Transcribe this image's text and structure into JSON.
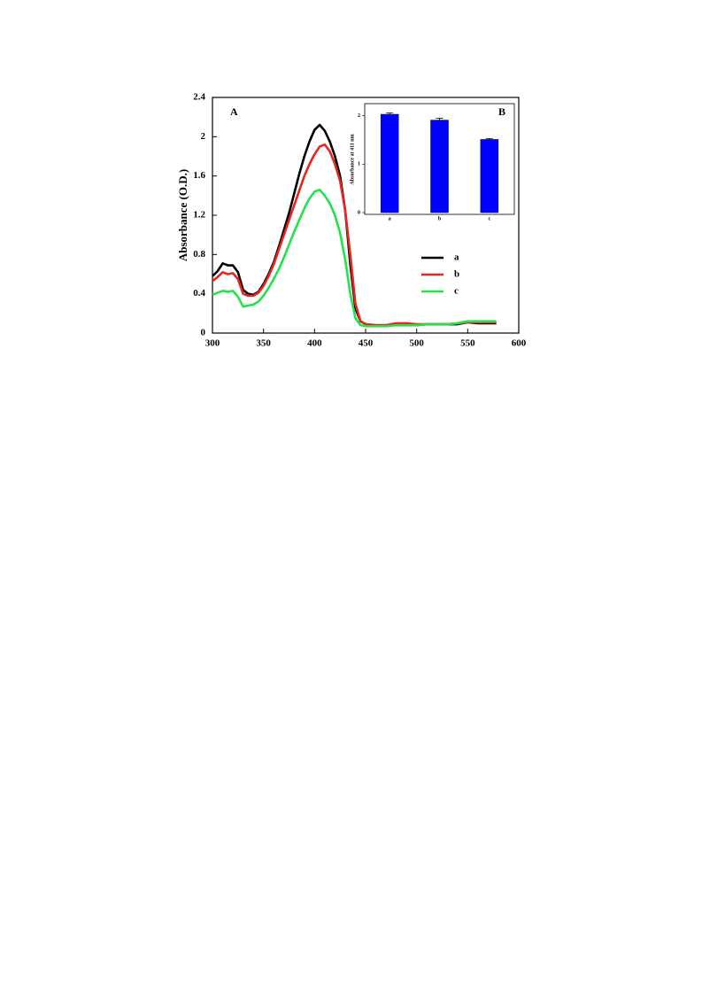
{
  "chart_data": [
    {
      "type": "line",
      "annotation": "A",
      "y_label": "Absorbance (O.D.)",
      "xlim": [
        300,
        600
      ],
      "xticks": [
        300,
        350,
        400,
        450,
        500,
        550,
        600
      ],
      "ylim": [
        0,
        2.4
      ],
      "yticks": [
        0,
        0.4,
        0.8,
        1.2,
        1.6,
        2,
        2.4
      ],
      "legend": "right",
      "x": [
        300,
        305,
        310,
        315,
        320,
        325,
        330,
        335,
        340,
        345,
        350,
        355,
        360,
        365,
        370,
        375,
        380,
        385,
        390,
        395,
        400,
        405,
        410,
        415,
        420,
        425,
        430,
        435,
        440,
        445,
        450,
        460,
        470,
        480,
        490,
        500,
        510,
        520,
        530,
        540,
        550,
        560,
        570,
        578
      ],
      "series": [
        {
          "name": "a",
          "color": "#000000",
          "values": [
            0.58,
            0.63,
            0.71,
            0.69,
            0.69,
            0.62,
            0.44,
            0.4,
            0.39,
            0.42,
            0.5,
            0.6,
            0.72,
            0.88,
            1.05,
            1.22,
            1.42,
            1.62,
            1.8,
            1.95,
            2.07,
            2.12,
            2.06,
            1.95,
            1.8,
            1.6,
            1.25,
            0.7,
            0.25,
            0.12,
            0.09,
            0.08,
            0.08,
            0.08,
            0.08,
            0.08,
            0.09,
            0.09,
            0.09,
            0.09,
            0.11,
            0.1,
            0.1,
            0.1
          ]
        },
        {
          "name": "b",
          "color": "#e8251f",
          "values": [
            0.53,
            0.57,
            0.62,
            0.6,
            0.61,
            0.55,
            0.4,
            0.38,
            0.38,
            0.41,
            0.48,
            0.58,
            0.7,
            0.85,
            1.0,
            1.15,
            1.3,
            1.45,
            1.6,
            1.72,
            1.82,
            1.9,
            1.92,
            1.85,
            1.72,
            1.55,
            1.25,
            0.8,
            0.3,
            0.12,
            0.09,
            0.08,
            0.08,
            0.1,
            0.1,
            0.09,
            0.09,
            0.09,
            0.09,
            0.1,
            0.11,
            0.11,
            0.11,
            0.11
          ]
        },
        {
          "name": "c",
          "color": "#22e34a",
          "values": [
            0.39,
            0.41,
            0.43,
            0.42,
            0.43,
            0.37,
            0.27,
            0.28,
            0.29,
            0.32,
            0.38,
            0.46,
            0.55,
            0.65,
            0.77,
            0.9,
            1.03,
            1.15,
            1.27,
            1.37,
            1.44,
            1.46,
            1.4,
            1.32,
            1.2,
            1.02,
            0.75,
            0.4,
            0.15,
            0.08,
            0.07,
            0.07,
            0.07,
            0.08,
            0.08,
            0.08,
            0.09,
            0.09,
            0.09,
            0.1,
            0.12,
            0.12,
            0.12,
            0.12
          ]
        }
      ]
    },
    {
      "type": "bar",
      "annotation": "B",
      "y_label": "Absorbance at 411 nm",
      "categories": [
        "a",
        "b",
        "c"
      ],
      "values": [
        2.03,
        1.91,
        1.51
      ],
      "errors": [
        0.03,
        0.04,
        0.02
      ],
      "color": "#0000ff",
      "ylim": [
        0,
        2.25
      ],
      "yticks": [
        0,
        1,
        2
      ]
    }
  ]
}
